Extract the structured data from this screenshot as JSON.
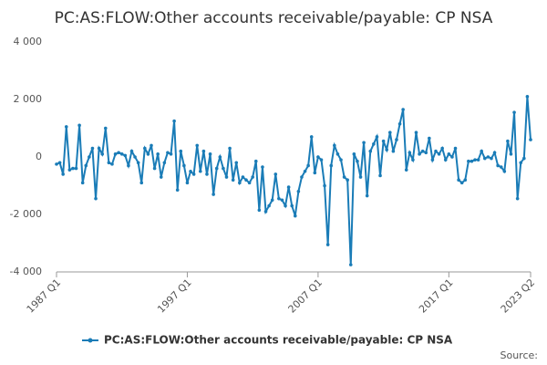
{
  "chart_data": {
    "type": "line",
    "title": "PC:AS:FLOW:Other accounts receivable/payable: CP NSA",
    "categories": [
      "1987 Q1",
      null,
      null,
      null,
      null,
      null,
      null,
      null,
      null,
      null,
      null,
      null,
      null,
      null,
      null,
      null,
      null,
      null,
      null,
      null,
      null,
      null,
      null,
      null,
      null,
      null,
      null,
      null,
      null,
      null,
      null,
      null,
      null,
      null,
      null,
      null,
      null,
      null,
      null,
      null,
      "1997 Q1",
      null,
      null,
      null,
      null,
      null,
      null,
      null,
      null,
      null,
      null,
      null,
      null,
      null,
      null,
      null,
      null,
      null,
      null,
      null,
      null,
      null,
      null,
      null,
      null,
      null,
      null,
      null,
      null,
      null,
      null,
      null,
      null,
      null,
      null,
      null,
      null,
      null,
      null,
      null,
      "2007 Q1",
      null,
      null,
      null,
      null,
      null,
      null,
      null,
      null,
      null,
      null,
      null,
      null,
      null,
      null,
      null,
      null,
      null,
      null,
      null,
      null,
      null,
      null,
      null,
      null,
      null,
      null,
      null,
      null,
      null,
      null,
      null,
      null,
      null,
      null,
      null,
      null,
      null,
      null,
      null,
      "2017 Q1",
      null,
      null,
      null,
      null,
      null,
      null,
      null,
      null,
      null,
      null,
      null,
      null,
      null,
      null,
      null,
      null,
      null,
      null,
      null,
      null,
      null,
      null,
      null,
      null,
      "2023 Q2"
    ],
    "series": [
      {
        "name": "PC:AS:FLOW:Other accounts receivable/payable: CP NSA",
        "color": "#1a7cb7",
        "values": [
          -250,
          -200,
          -600,
          1050,
          -450,
          -400,
          -400,
          1100,
          -900,
          -300,
          0,
          300,
          -1450,
          300,
          100,
          1000,
          -200,
          -250,
          100,
          150,
          100,
          50,
          -300,
          200,
          0,
          -200,
          -900,
          300,
          100,
          400,
          -400,
          100,
          -700,
          -200,
          150,
          100,
          1250,
          -1150,
          200,
          -300,
          -900,
          -500,
          -600,
          400,
          -500,
          200,
          -600,
          100,
          -1300,
          -400,
          0,
          -400,
          -700,
          300,
          -800,
          -200,
          -900,
          -700,
          -800,
          -900,
          -700,
          -150,
          -1850,
          -350,
          -1900,
          -1700,
          -1500,
          -600,
          -1450,
          -1500,
          -1700,
          -1050,
          -1700,
          -2050,
          -1200,
          -700,
          -500,
          -300,
          700,
          -550,
          0,
          -100,
          -1000,
          -3050,
          -300,
          400,
          100,
          -100,
          -700,
          -800,
          -3750,
          100,
          -150,
          -700,
          500,
          -1350,
          200,
          450,
          700,
          -650,
          550,
          250,
          850,
          200,
          600,
          1150,
          1650,
          -450,
          150,
          -100,
          850,
          100,
          200,
          150,
          650,
          -100,
          200,
          100,
          300,
          -100,
          100,
          0,
          300,
          -800,
          -900,
          -800,
          -150,
          -150,
          -100,
          -100,
          200,
          -50,
          0,
          -50,
          150,
          -300,
          -350,
          -500,
          550,
          100,
          1550,
          -1450,
          -200,
          -50,
          2100,
          600
        ]
      }
    ],
    "ylim": [
      -4000,
      4000
    ],
    "yticks": [
      {
        "value": -4000,
        "label": "-4 000"
      },
      {
        "value": -2000,
        "label": "-2 000"
      },
      0,
      {
        "value": 2000,
        "label": "2 000"
      },
      {
        "value": 4000,
        "label": "4 000"
      }
    ],
    "grid": false,
    "source": "Source:"
  }
}
